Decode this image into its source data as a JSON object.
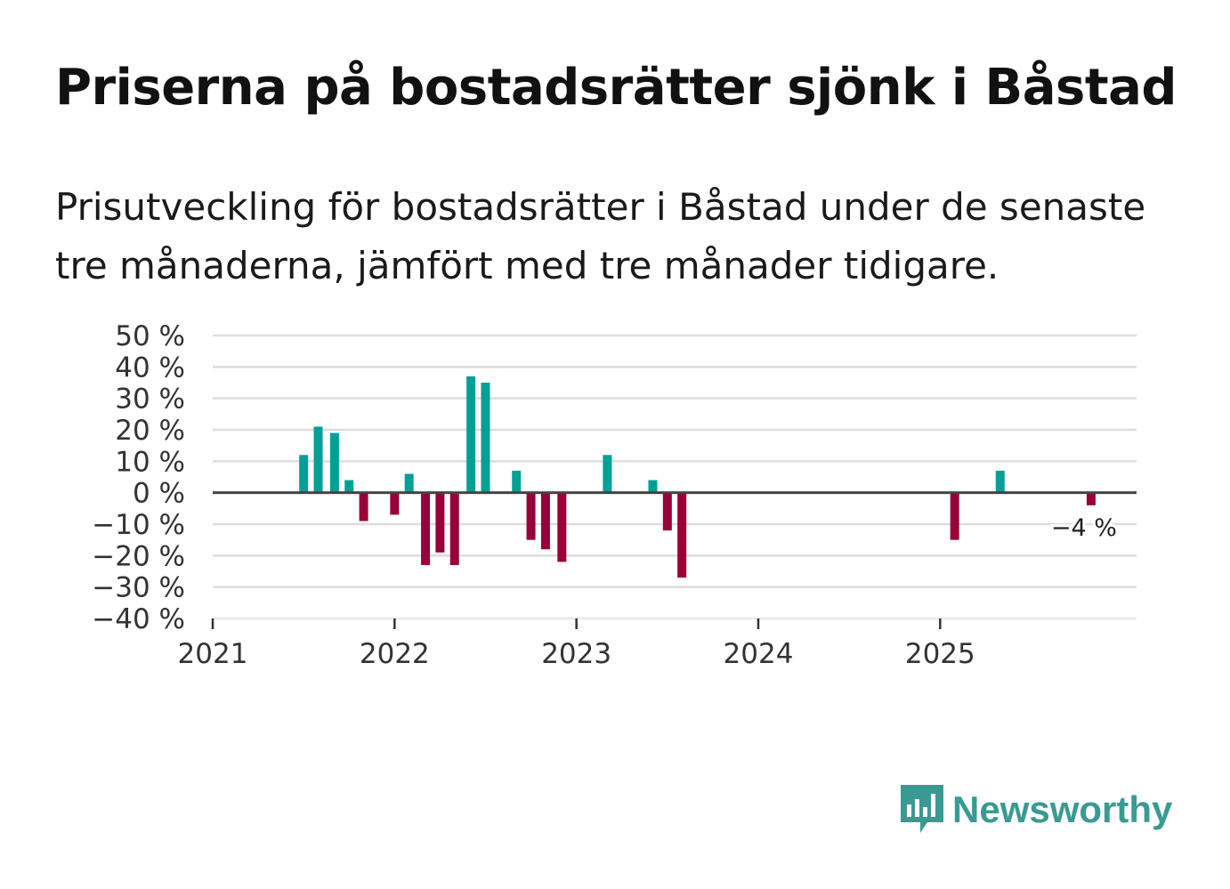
{
  "title": "Priserna på bostadsrätter sjönk i Båstad",
  "subtitle": "Prisutveckling för bostadsrätter i Båstad under de senaste tre månaderna, jämfört med tre månader tidigare.",
  "brand": {
    "name": "Newsworthy",
    "color": "#3a9a93",
    "icon": "newsworthy-chart-icon"
  },
  "colors": {
    "positive": "#00a096",
    "negative": "#990038",
    "grid": "#dddddd",
    "zero_line": "#444444"
  },
  "chart_data": {
    "type": "bar",
    "title": "",
    "xlabel": "",
    "ylabel": "",
    "ylim": [
      -40,
      50
    ],
    "xlim": [
      2021.0,
      2026.08
    ],
    "y_ticks": [
      50,
      40,
      30,
      20,
      10,
      0,
      -10,
      -20,
      -30,
      -40
    ],
    "y_tick_labels": [
      "50 %",
      "40 %",
      "30 %",
      "20 %",
      "10 %",
      "0 %",
      "−10 %",
      "−20 %",
      "−30 %",
      "−40 %"
    ],
    "x_ticks": [
      2021,
      2022,
      2023,
      2024,
      2025
    ],
    "x_tick_labels": [
      "2021",
      "2022",
      "2023",
      "2024",
      "2025"
    ],
    "grid": true,
    "annotation": {
      "text": "−4 %",
      "x": 2025.83,
      "value": -4
    },
    "series": [
      {
        "name": "Prisutveckling",
        "points": [
          {
            "x": 2021.5,
            "value": 12
          },
          {
            "x": 2021.58,
            "value": 21
          },
          {
            "x": 2021.67,
            "value": 19
          },
          {
            "x": 2021.75,
            "value": 4
          },
          {
            "x": 2021.83,
            "value": -9
          },
          {
            "x": 2022.0,
            "value": -7
          },
          {
            "x": 2022.08,
            "value": 6
          },
          {
            "x": 2022.17,
            "value": -23
          },
          {
            "x": 2022.25,
            "value": -19
          },
          {
            "x": 2022.33,
            "value": -23
          },
          {
            "x": 2022.42,
            "value": 37
          },
          {
            "x": 2022.5,
            "value": 35
          },
          {
            "x": 2022.67,
            "value": 7
          },
          {
            "x": 2022.75,
            "value": -15
          },
          {
            "x": 2022.83,
            "value": -18
          },
          {
            "x": 2022.92,
            "value": -22
          },
          {
            "x": 2023.17,
            "value": 12
          },
          {
            "x": 2023.42,
            "value": 4
          },
          {
            "x": 2023.5,
            "value": -12
          },
          {
            "x": 2023.58,
            "value": -27
          },
          {
            "x": 2025.08,
            "value": -15
          },
          {
            "x": 2025.33,
            "value": 7
          },
          {
            "x": 2025.83,
            "value": -4
          }
        ]
      }
    ]
  }
}
